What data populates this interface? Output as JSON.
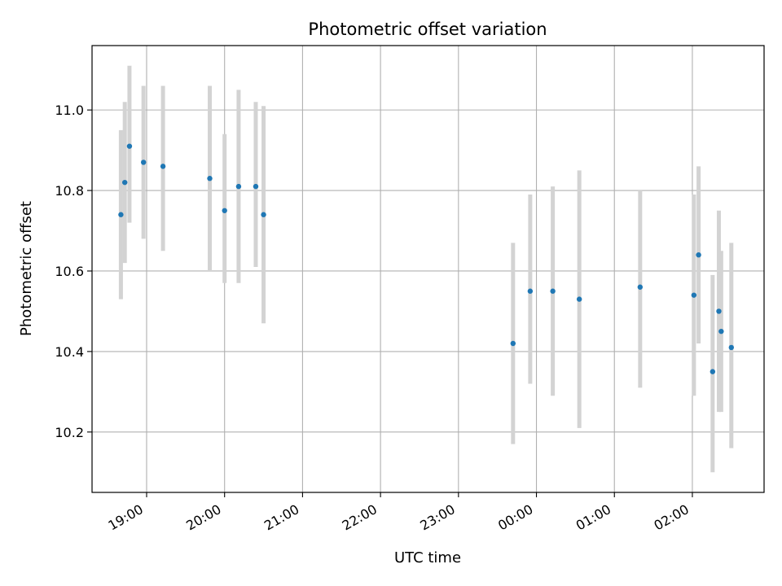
{
  "chart_data": {
    "type": "scatter",
    "title": "Photometric offset variation",
    "xlabel": "UTC time",
    "ylabel": "Photometric offset",
    "x_unit": "time of day (UTC), hours; values past 24 are after midnight",
    "x_ticks": [
      {
        "value": 19,
        "label": "19:00"
      },
      {
        "value": 20,
        "label": "20:00"
      },
      {
        "value": 21,
        "label": "21:00"
      },
      {
        "value": 22,
        "label": "22:00"
      },
      {
        "value": 23,
        "label": "23:00"
      },
      {
        "value": 24,
        "label": "00:00"
      },
      {
        "value": 25,
        "label": "01:00"
      },
      {
        "value": 26,
        "label": "02:00"
      }
    ],
    "y_ticks": [
      {
        "value": 10.2,
        "label": "10.2"
      },
      {
        "value": 10.4,
        "label": "10.4"
      },
      {
        "value": 10.6,
        "label": "10.6"
      },
      {
        "value": 10.8,
        "label": "10.8"
      },
      {
        "value": 11.0,
        "label": "11.0"
      }
    ],
    "xlim": [
      18.3,
      26.92
    ],
    "ylim": [
      10.05,
      11.16
    ],
    "grid": true,
    "colors": {
      "marker": "#1f77b4",
      "errorbar": "#d3d3d3",
      "grid": "#b0b0b0"
    },
    "points": [
      {
        "x": 18.67,
        "y": 10.74,
        "yerr_low": 10.53,
        "yerr_high": 10.95
      },
      {
        "x": 18.72,
        "y": 10.82,
        "yerr_low": 10.62,
        "yerr_high": 11.02
      },
      {
        "x": 18.78,
        "y": 10.91,
        "yerr_low": 10.72,
        "yerr_high": 11.11
      },
      {
        "x": 18.96,
        "y": 10.87,
        "yerr_low": 10.68,
        "yerr_high": 11.06
      },
      {
        "x": 19.21,
        "y": 10.86,
        "yerr_low": 10.65,
        "yerr_high": 11.06
      },
      {
        "x": 19.81,
        "y": 10.83,
        "yerr_low": 10.6,
        "yerr_high": 11.06
      },
      {
        "x": 20.0,
        "y": 10.75,
        "yerr_low": 10.57,
        "yerr_high": 10.94
      },
      {
        "x": 20.18,
        "y": 10.81,
        "yerr_low": 10.57,
        "yerr_high": 11.05
      },
      {
        "x": 20.4,
        "y": 10.81,
        "yerr_low": 10.61,
        "yerr_high": 11.02
      },
      {
        "x": 20.5,
        "y": 10.74,
        "yerr_low": 10.47,
        "yerr_high": 11.01
      },
      {
        "x": 23.7,
        "y": 10.42,
        "yerr_low": 10.17,
        "yerr_high": 10.67
      },
      {
        "x": 23.92,
        "y": 10.55,
        "yerr_low": 10.32,
        "yerr_high": 10.79
      },
      {
        "x": 24.21,
        "y": 10.55,
        "yerr_low": 10.29,
        "yerr_high": 10.81
      },
      {
        "x": 24.55,
        "y": 10.53,
        "yerr_low": 10.21,
        "yerr_high": 10.85
      },
      {
        "x": 25.33,
        "y": 10.56,
        "yerr_low": 10.31,
        "yerr_high": 10.8
      },
      {
        "x": 26.02,
        "y": 10.54,
        "yerr_low": 10.29,
        "yerr_high": 10.79
      },
      {
        "x": 26.08,
        "y": 10.64,
        "yerr_low": 10.42,
        "yerr_high": 10.86
      },
      {
        "x": 26.26,
        "y": 10.35,
        "yerr_low": 10.1,
        "yerr_high": 10.59
      },
      {
        "x": 26.34,
        "y": 10.5,
        "yerr_low": 10.25,
        "yerr_high": 10.75
      },
      {
        "x": 26.37,
        "y": 10.45,
        "yerr_low": 10.25,
        "yerr_high": 10.65
      },
      {
        "x": 26.5,
        "y": 10.41,
        "yerr_low": 10.16,
        "yerr_high": 10.67
      }
    ]
  }
}
